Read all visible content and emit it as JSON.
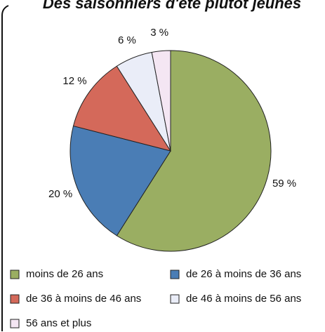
{
  "chart_data": {
    "type": "pie",
    "title": "Des saisonniers d'été plutôt jeunes",
    "categories": [
      "moins de 26 ans",
      "de 26 à moins de 36 ans",
      "de 36 à moins de 46 ans",
      "de 46 à moins de 56 ans",
      "56 ans et plus"
    ],
    "values": [
      59,
      20,
      12,
      6,
      3
    ],
    "value_labels": [
      "59 %",
      "20 %",
      "12 %",
      "6 %",
      "3 %"
    ],
    "colors": [
      "#9aae62",
      "#4a7db5",
      "#d4695a",
      "#eaedf8",
      "#f4e6f3"
    ]
  }
}
